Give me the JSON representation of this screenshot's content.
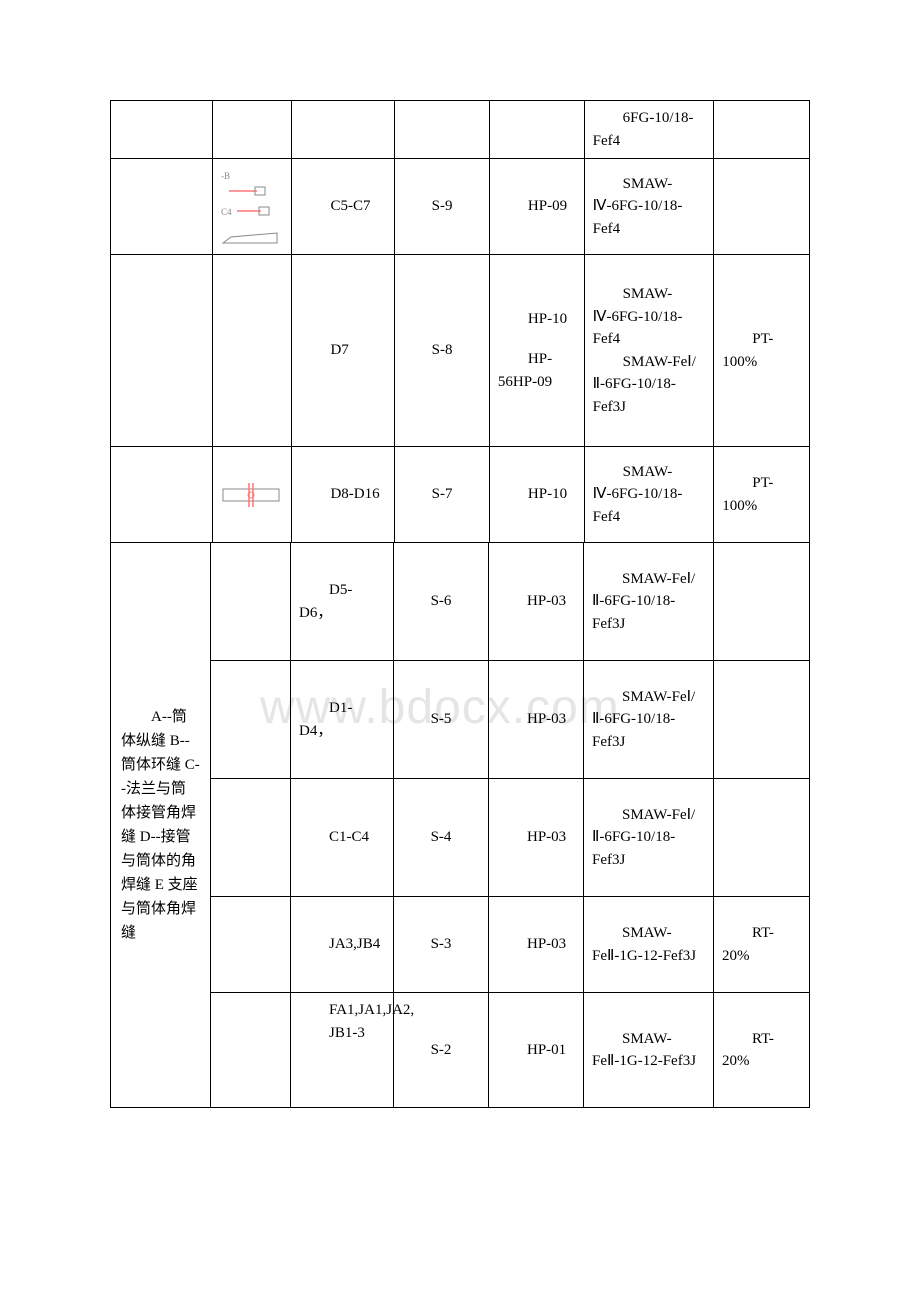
{
  "leftMergedText": "A--筒体纵缝 B--筒体环缝 C--法兰与筒体接管角焊缝 D--接管与筒体的角焊缝 E 支座与筒体角焊缝",
  "watermark": "www.bdocx.com",
  "rows": [
    {
      "diagram": "none",
      "code": "",
      "s": "",
      "hp": "",
      "smaw": "6FG-10/18-Fef4",
      "test": "",
      "height": 56,
      "hasSpacer": true
    },
    {
      "diagram": "c5c7",
      "code": "C5-C7",
      "s": "S-9",
      "hp": "HP-09",
      "smaw": "SMAW-Ⅳ-6FG-10/18-Fef4",
      "test": "",
      "height": 96,
      "hasSpacer": true
    },
    {
      "diagram": "d7",
      "code": "D7",
      "s": "S-8",
      "hp": "HP-10\nHP-56HP-09",
      "hpMulti": true,
      "smaw": "SMAW-Ⅳ-6FG-10/18-Fef4\nSMAW-FeⅠ/Ⅱ-6FG-10/18-Fef3J",
      "test": "PT-100%",
      "height": 192,
      "hasSpacer": true
    },
    {
      "diagram": "d8d16",
      "code": "D8-D16",
      "s": "S-7",
      "hp": "HP-10",
      "smaw": "SMAW-Ⅳ-6FG-10/18-Fef4",
      "test": "PT-100%",
      "height": 96,
      "hasSpacer": true
    }
  ],
  "mergedRows": [
    {
      "diagram": "none",
      "code": "D5-D6，",
      "s": "S-6",
      "hp": "HP-03",
      "smaw": "SMAW-FeⅠ/Ⅱ-6FG-10/18-Fef3J",
      "test": "",
      "height": 118
    },
    {
      "diagram": "none",
      "code": "D1-D4，",
      "s": "S-5",
      "hp": "HP-03",
      "smaw": "SMAW-FeⅠ/Ⅱ-6FG-10/18-Fef3J",
      "test": "",
      "height": 118
    },
    {
      "diagram": "none",
      "code": "C1-C4",
      "s": "S-4",
      "hp": "HP-03",
      "smaw": "SMAW-FeⅠ/Ⅱ-6FG-10/18-Fef3J",
      "test": "",
      "height": 118
    },
    {
      "diagram": "none",
      "code": "JA3,JB4",
      "s": "S-3",
      "hp": "HP-03",
      "smaw": "SMAW-FeⅡ-1G-12-Fef3J",
      "test": "RT-20%",
      "height": 96
    },
    {
      "diagram": "none",
      "code": "FA1,JA1,JA2,\nJB1-3",
      "codeMulti": true,
      "s": "S-2",
      "hp": "HP-01",
      "smaw": "SMAW-FeⅡ-1G-12-Fef3J",
      "test": "RT-20%",
      "height": 114
    }
  ],
  "icons": {
    "c5c7": {
      "type": "c5c7"
    },
    "d7": {
      "type": "d7"
    },
    "d8d16": {
      "type": "d8d16"
    }
  }
}
